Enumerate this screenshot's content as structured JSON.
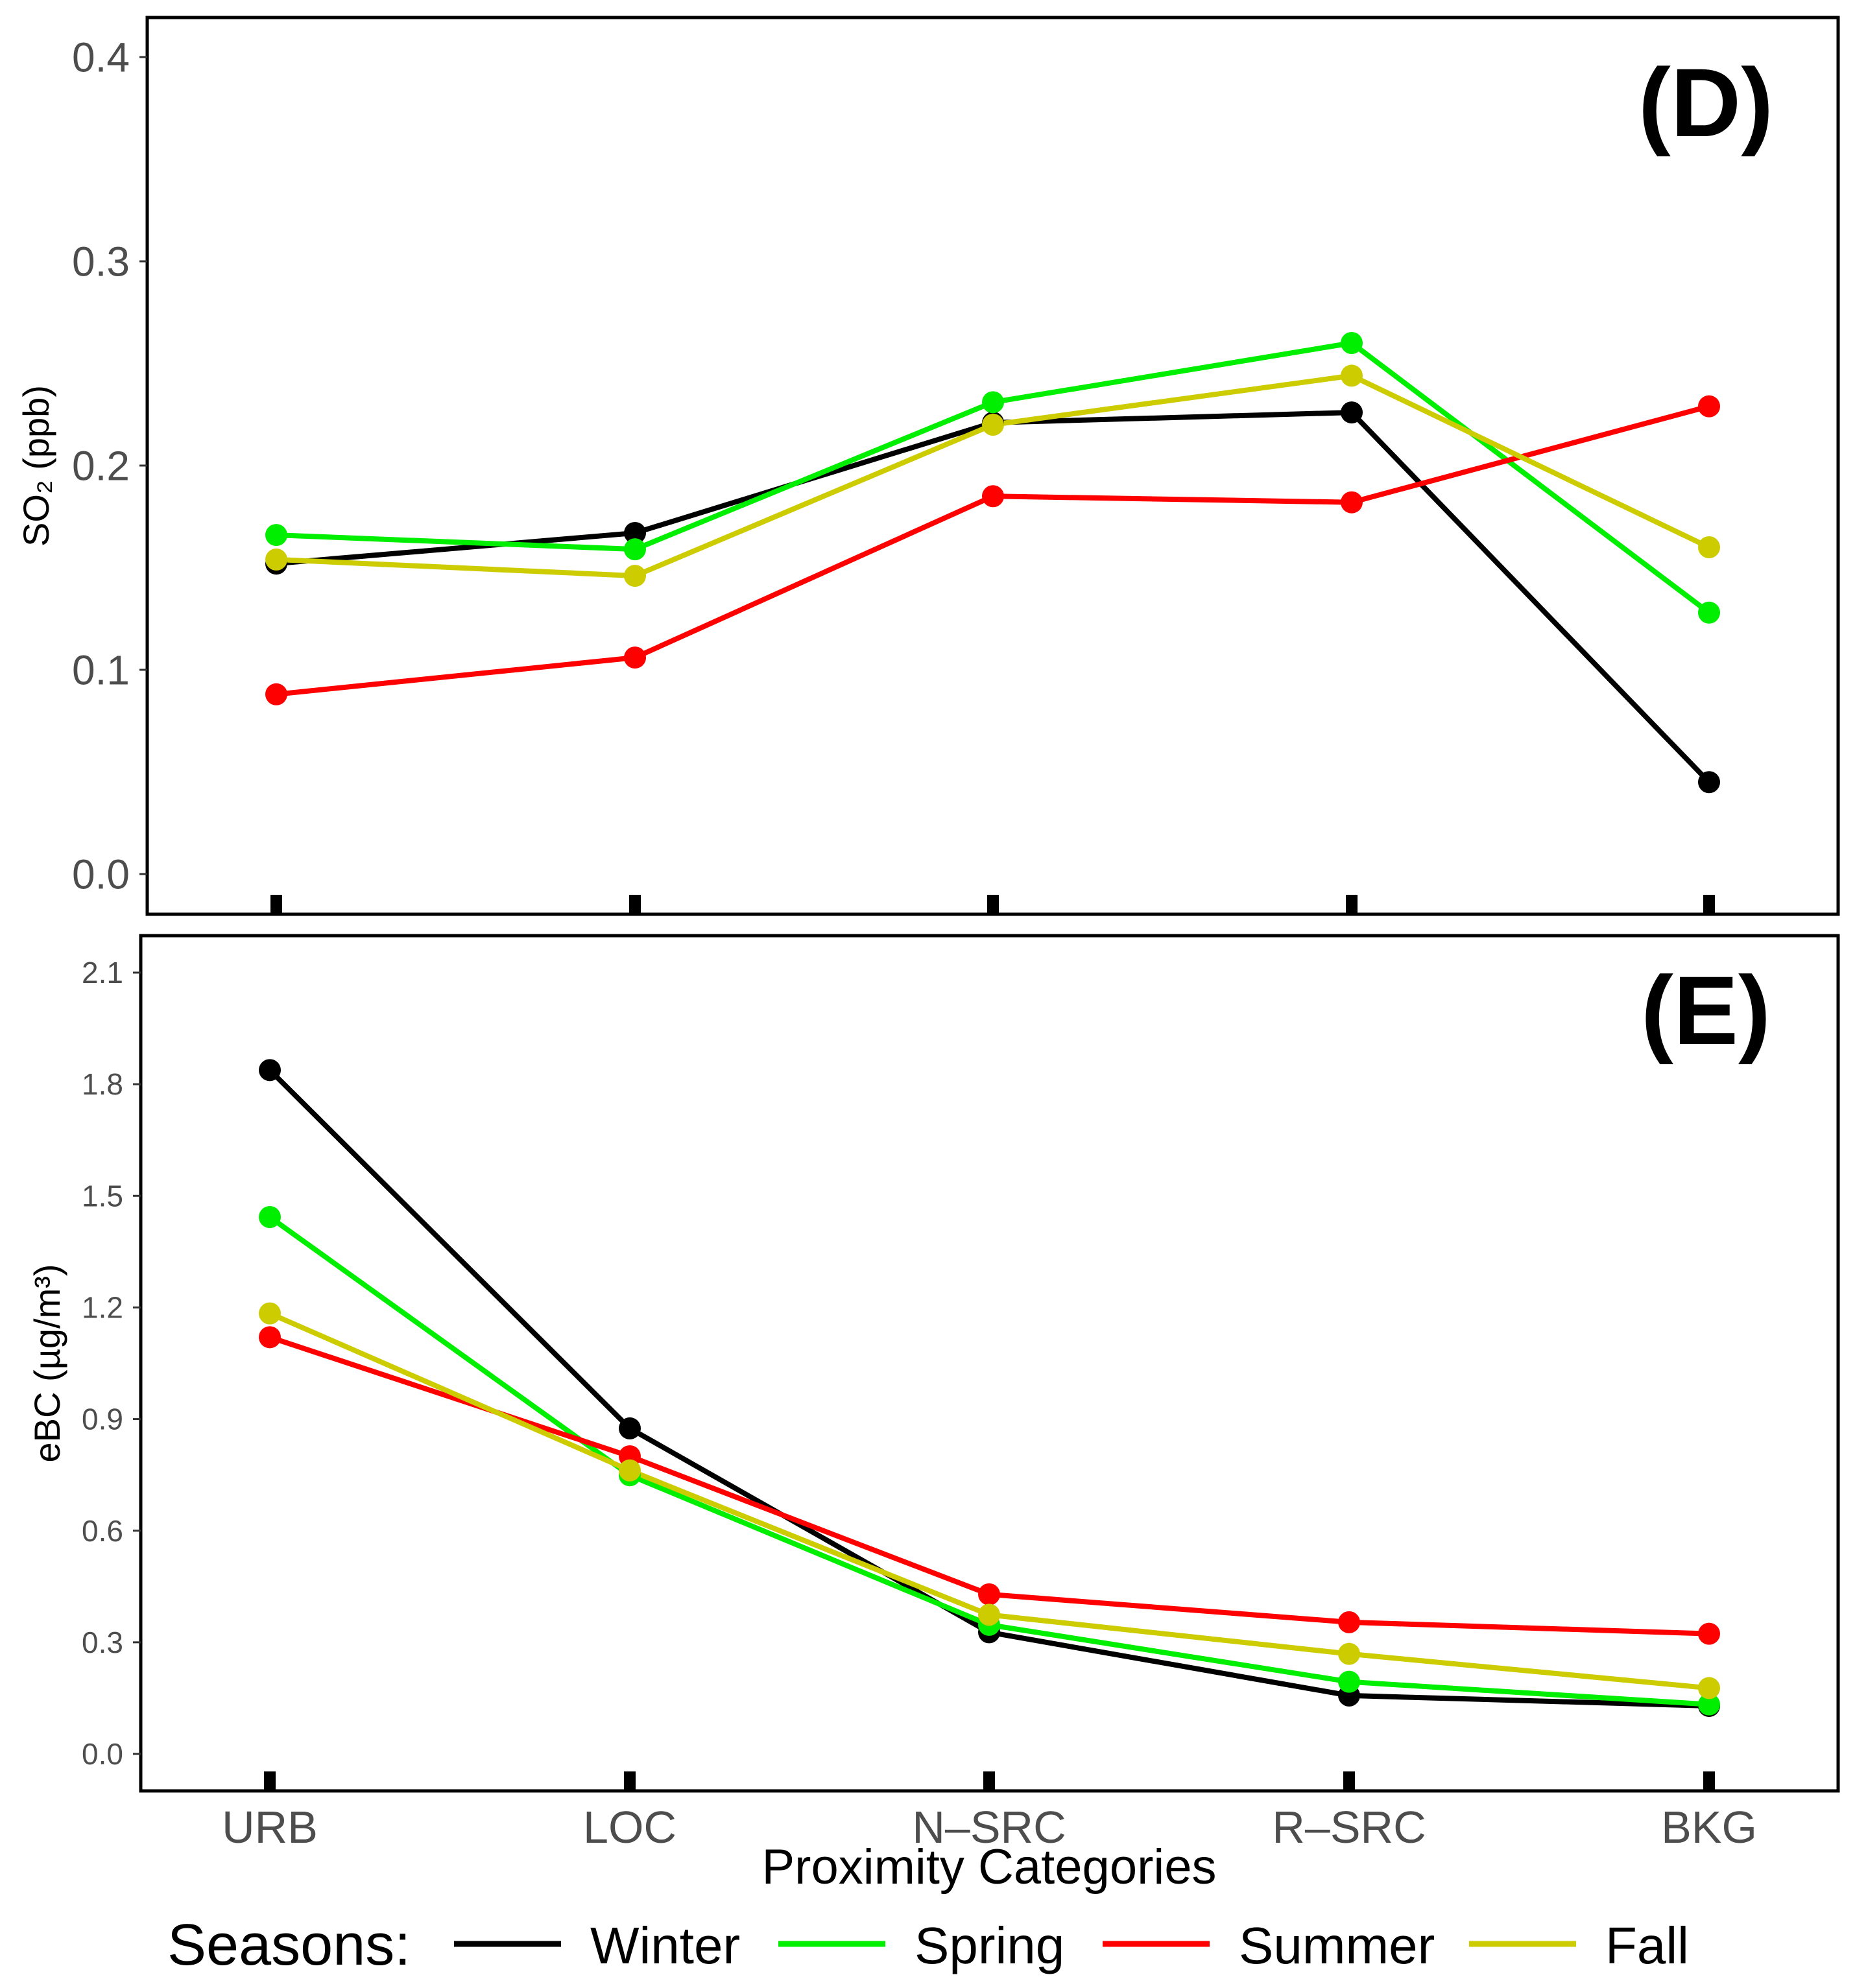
{
  "colors": {
    "Winter": "#000000",
    "Spring": "#00ee00",
    "Summer": "#ff0000",
    "Fall": "#cccc00"
  },
  "legend": {
    "title": "Seasons:",
    "entries": [
      "Winter",
      "Spring",
      "Summer",
      "Fall"
    ]
  },
  "chart_data": [
    {
      "type": "line",
      "panel_label": "(D)",
      "xlabel": "",
      "ylabel": "SO₂ (ppb)",
      "ylim": [
        0,
        0.41
      ],
      "yticks": [
        0.0,
        0.1,
        0.2,
        0.3,
        0.4
      ],
      "ytick_labels": [
        "0.0",
        "0.1",
        "0.2",
        "0.3",
        "0.4"
      ],
      "categories": [
        "URB",
        "LOC",
        "N–SRC",
        "R–SRC",
        "BKG"
      ],
      "grid": false,
      "series": [
        {
          "name": "Winter",
          "values": [
            0.152,
            0.167,
            0.221,
            0.226,
            0.045
          ]
        },
        {
          "name": "Spring",
          "values": [
            0.166,
            0.159,
            0.231,
            0.26,
            0.128
          ]
        },
        {
          "name": "Summer",
          "values": [
            0.088,
            0.106,
            0.185,
            0.182,
            0.229
          ]
        },
        {
          "name": "Fall",
          "values": [
            0.154,
            0.146,
            0.22,
            0.244,
            0.16
          ]
        }
      ]
    },
    {
      "type": "line",
      "panel_label": "(E)",
      "xlabel": "Proximity Categories",
      "ylabel": "eBC (µg/m³)",
      "ylim": [
        -0.1,
        2.2
      ],
      "yticks": [
        0.0,
        0.3,
        0.6,
        0.9,
        1.2,
        1.5,
        1.8,
        2.1
      ],
      "ytick_labels": [
        "0.0",
        "0.3",
        "0.6",
        "0.9",
        "1.2",
        "1.5",
        "1.8",
        "2.1"
      ],
      "categories": [
        "URB",
        "LOC",
        "N–SRC",
        "R–SRC",
        "BKG"
      ],
      "grid": false,
      "legend_position": "bottom",
      "series": [
        {
          "name": "Winter",
          "values": [
            1.838,
            0.875,
            0.327,
            0.157,
            0.129
          ]
        },
        {
          "name": "Spring",
          "values": [
            1.443,
            0.749,
            0.347,
            0.194,
            0.133
          ]
        },
        {
          "name": "Summer",
          "values": [
            1.12,
            0.8,
            0.429,
            0.354,
            0.323
          ]
        },
        {
          "name": "Fall",
          "values": [
            1.184,
            0.762,
            0.374,
            0.269,
            0.177
          ]
        }
      ]
    }
  ]
}
